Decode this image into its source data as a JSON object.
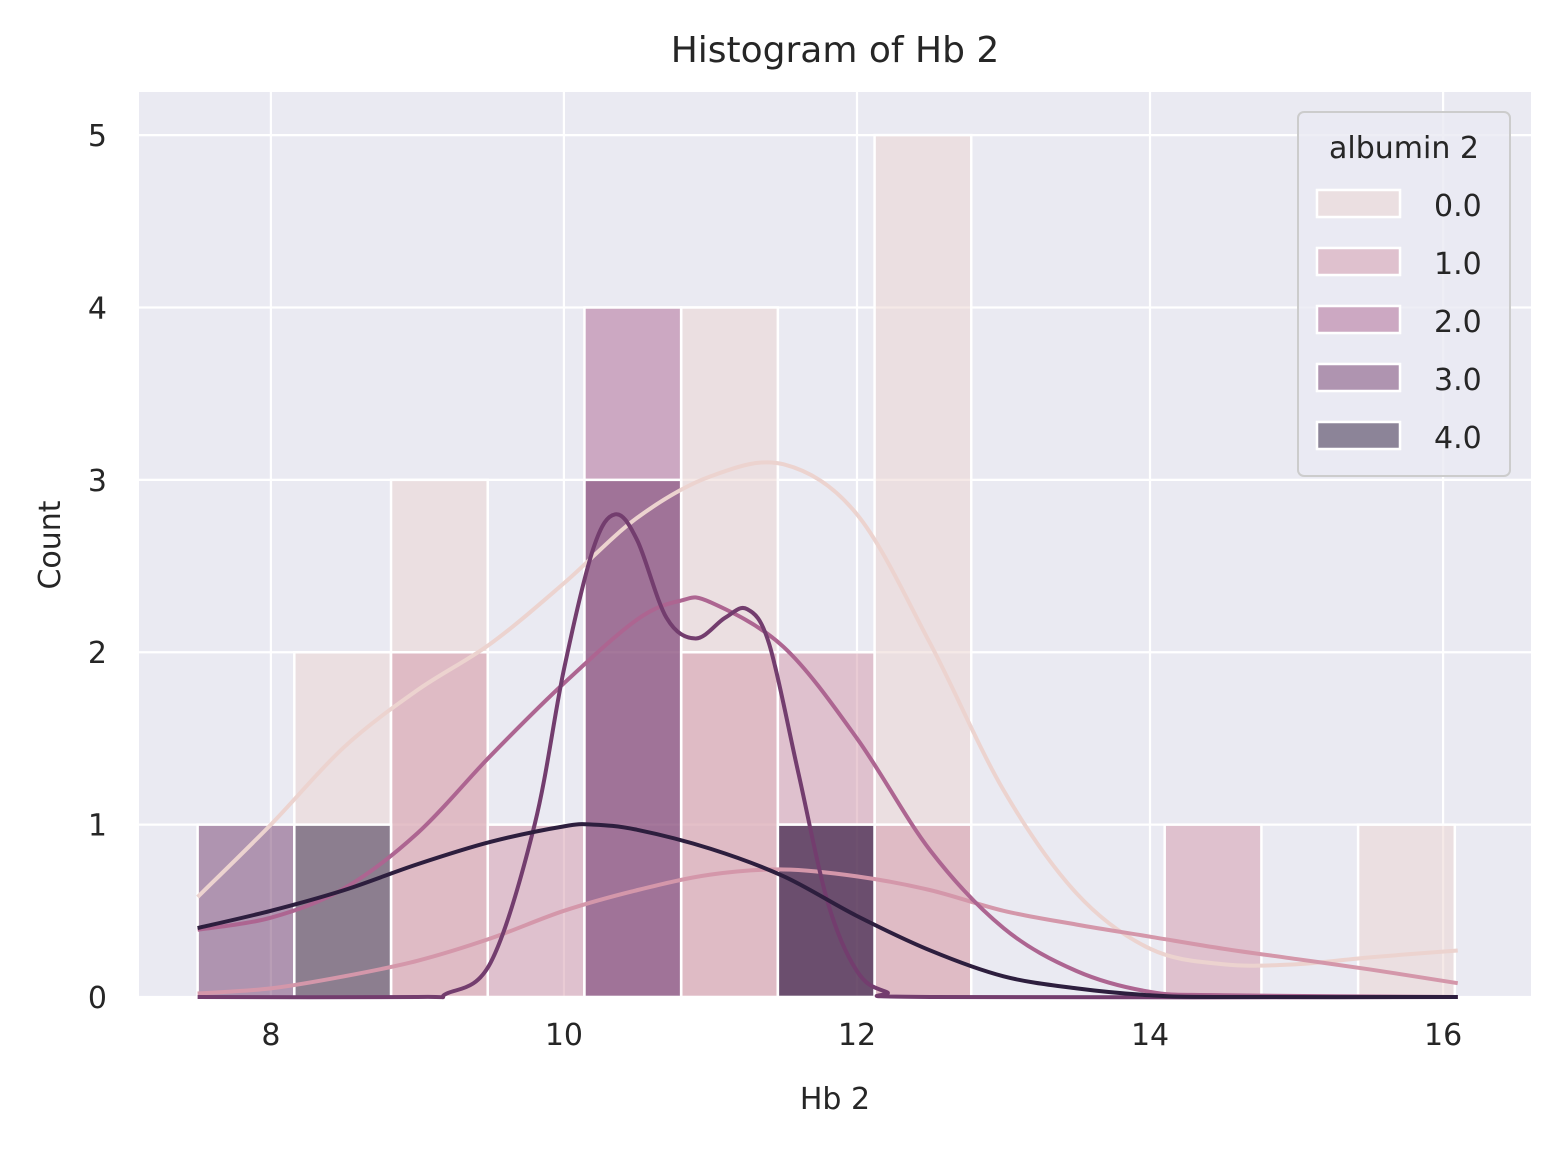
{
  "chart_data": {
    "type": "bar",
    "title": "Histogram of Hb 2",
    "xlabel": "Hb 2",
    "ylabel": "Count",
    "xlim": [
      7.1,
      16.6
    ],
    "ylim": [
      0,
      5.25
    ],
    "xticks": [
      8,
      10,
      12,
      14,
      16
    ],
    "yticks": [
      0,
      1,
      2,
      3,
      4,
      5
    ],
    "grid": true,
    "legend": {
      "title": "albumin 2",
      "placement": "top-right",
      "entries": [
        "0.0",
        "1.0",
        "2.0",
        "3.0",
        "4.0"
      ]
    },
    "bin_edges": [
      7.5,
      8.16,
      8.82,
      9.48,
      10.14,
      10.8,
      11.46,
      12.12,
      12.78,
      13.44,
      14.1,
      14.76,
      15.42,
      16.08
    ],
    "series": [
      {
        "name": "0.0",
        "color": "#ecd3cf",
        "counts": [
          0,
          2,
          3,
          0,
          0,
          4,
          0,
          5,
          0,
          0,
          0,
          0,
          1
        ],
        "kde": [
          [
            7.5,
            0.58
          ],
          [
            8.0,
            1.0
          ],
          [
            8.5,
            1.45
          ],
          [
            9.0,
            1.78
          ],
          [
            9.5,
            2.05
          ],
          [
            10.0,
            2.4
          ],
          [
            10.5,
            2.78
          ],
          [
            11.0,
            3.02
          ],
          [
            11.5,
            3.09
          ],
          [
            12.0,
            2.8
          ],
          [
            12.5,
            2.05
          ],
          [
            13.0,
            1.2
          ],
          [
            13.5,
            0.6
          ],
          [
            14.0,
            0.28
          ],
          [
            14.5,
            0.19
          ],
          [
            15.0,
            0.19
          ],
          [
            15.5,
            0.23
          ],
          [
            16.1,
            0.27
          ]
        ]
      },
      {
        "name": "1.0",
        "color": "#d497aa",
        "counts": [
          0,
          0,
          2,
          1,
          0,
          2,
          2,
          1,
          0,
          0,
          1,
          0,
          0
        ],
        "kde": [
          [
            7.5,
            0.02
          ],
          [
            8.0,
            0.05
          ],
          [
            8.5,
            0.12
          ],
          [
            9.0,
            0.21
          ],
          [
            9.5,
            0.34
          ],
          [
            10.0,
            0.5
          ],
          [
            10.5,
            0.62
          ],
          [
            11.0,
            0.71
          ],
          [
            11.5,
            0.74
          ],
          [
            12.0,
            0.7
          ],
          [
            12.5,
            0.62
          ],
          [
            13.0,
            0.5
          ],
          [
            13.5,
            0.42
          ],
          [
            14.0,
            0.35
          ],
          [
            14.5,
            0.28
          ],
          [
            15.0,
            0.22
          ],
          [
            15.5,
            0.16
          ],
          [
            16.1,
            0.08
          ]
        ]
      },
      {
        "name": "2.0",
        "color": "#ad6591",
        "counts": [
          0,
          0,
          0,
          0,
          4,
          0,
          0,
          0,
          0,
          0,
          0,
          0,
          0
        ],
        "kde": [
          [
            7.5,
            0.39
          ],
          [
            8.0,
            0.46
          ],
          [
            8.5,
            0.63
          ],
          [
            9.0,
            0.95
          ],
          [
            9.5,
            1.4
          ],
          [
            10.0,
            1.82
          ],
          [
            10.5,
            2.19
          ],
          [
            10.8,
            2.3
          ],
          [
            11.0,
            2.29
          ],
          [
            11.5,
            2.03
          ],
          [
            12.0,
            1.5
          ],
          [
            12.5,
            0.85
          ],
          [
            13.0,
            0.4
          ],
          [
            13.5,
            0.15
          ],
          [
            14.0,
            0.03
          ],
          [
            14.5,
            0.01
          ],
          [
            16.1,
            0.0
          ]
        ]
      },
      {
        "name": "3.0",
        "color": "#733d6e",
        "counts": [
          1,
          0,
          0,
          0,
          3,
          0,
          1,
          0,
          0,
          0,
          0,
          0,
          0
        ],
        "kde": [
          [
            7.5,
            0.0
          ],
          [
            9.0,
            0.0
          ],
          [
            9.2,
            0.02
          ],
          [
            9.5,
            0.2
          ],
          [
            9.8,
            1.0
          ],
          [
            10.0,
            1.9
          ],
          [
            10.2,
            2.6
          ],
          [
            10.35,
            2.8
          ],
          [
            10.5,
            2.65
          ],
          [
            10.7,
            2.2
          ],
          [
            10.9,
            2.08
          ],
          [
            11.1,
            2.2
          ],
          [
            11.25,
            2.25
          ],
          [
            11.4,
            2.05
          ],
          [
            11.6,
            1.3
          ],
          [
            11.8,
            0.55
          ],
          [
            12.0,
            0.15
          ],
          [
            12.2,
            0.03
          ],
          [
            12.5,
            0.0
          ],
          [
            16.1,
            0.0
          ]
        ]
      },
      {
        "name": "4.0",
        "color": "#2d1e3e",
        "counts": [
          0,
          1,
          0,
          0,
          0,
          0,
          1,
          0,
          0,
          0,
          0,
          0,
          0
        ],
        "kde": [
          [
            7.5,
            0.4
          ],
          [
            8.0,
            0.5
          ],
          [
            8.5,
            0.62
          ],
          [
            9.0,
            0.77
          ],
          [
            9.5,
            0.9
          ],
          [
            10.0,
            0.99
          ],
          [
            10.2,
            1.0
          ],
          [
            10.5,
            0.97
          ],
          [
            11.0,
            0.86
          ],
          [
            11.5,
            0.7
          ],
          [
            12.0,
            0.47
          ],
          [
            12.5,
            0.27
          ],
          [
            13.0,
            0.12
          ],
          [
            13.5,
            0.05
          ],
          [
            14.0,
            0.01
          ],
          [
            14.5,
            0.0
          ],
          [
            16.1,
            0.0
          ]
        ]
      }
    ]
  }
}
